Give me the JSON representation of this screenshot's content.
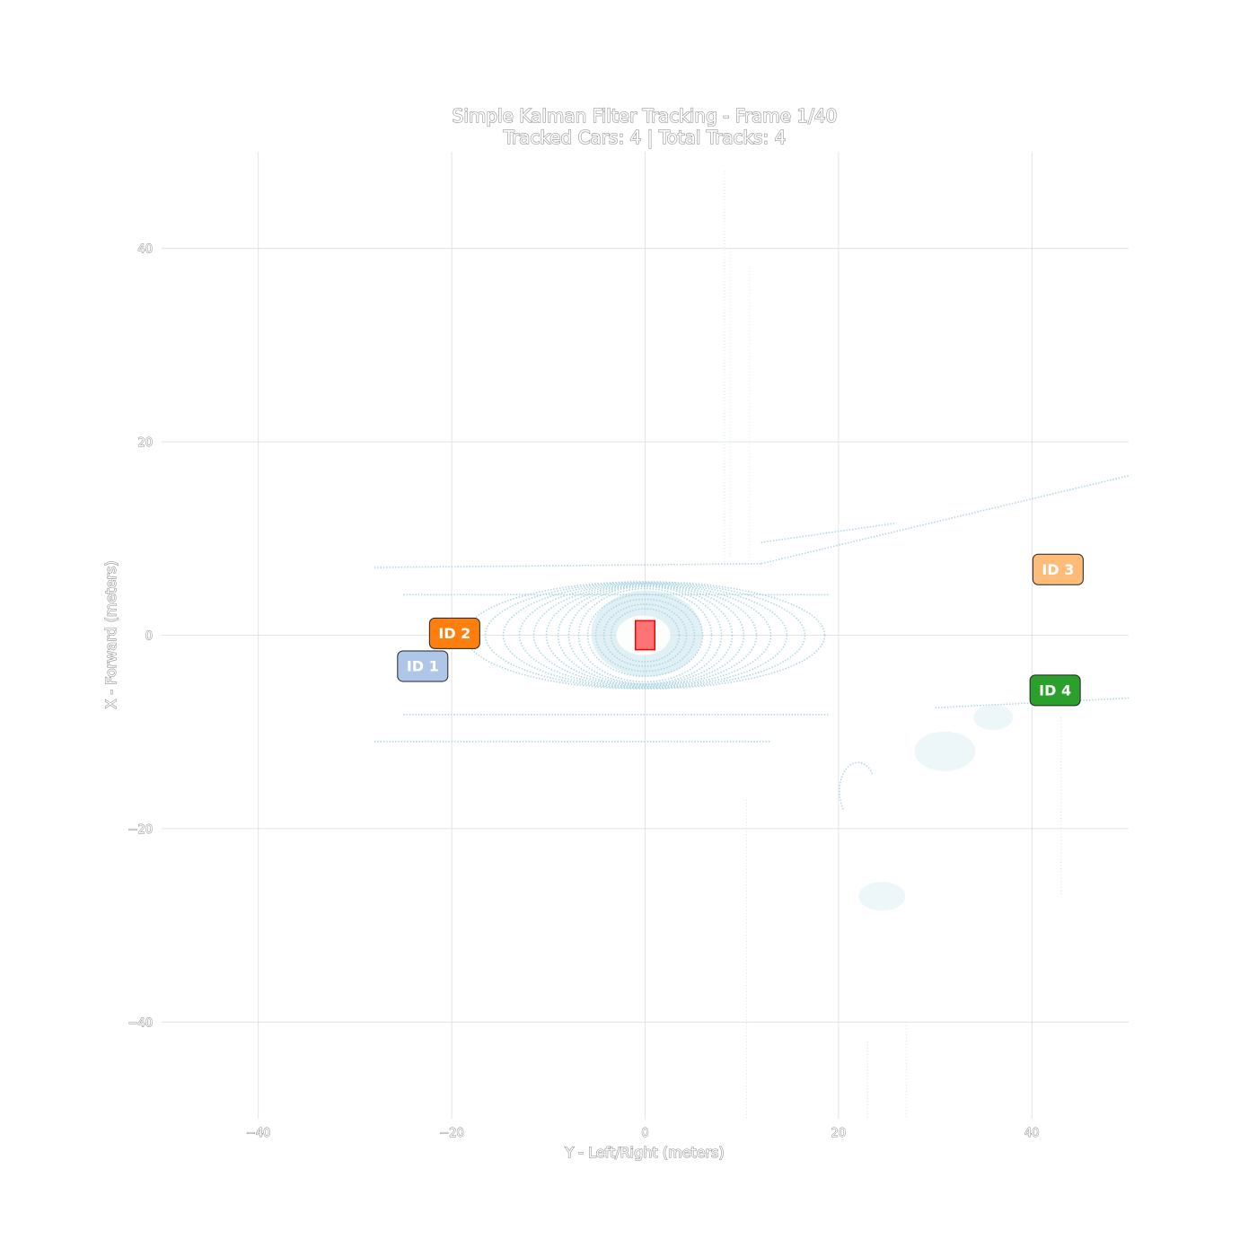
{
  "chart_data": {
    "type": "scatter",
    "title": "Simple Kalman Filter Tracking - Frame 1/40",
    "subtitle": "Tracked Cars: 4 | Total Tracks: 4",
    "xlabel": "Y - Left/Right (meters)",
    "ylabel": "X - Forward (meters)",
    "xlim": [
      -50,
      50
    ],
    "ylim": [
      -50,
      50
    ],
    "xticks": [
      -40,
      -20,
      0,
      20,
      40
    ],
    "xtick_labels": [
      "−40",
      "−20",
      "0",
      "20",
      "40"
    ],
    "yticks": [
      40,
      20,
      0,
      -20,
      -40
    ],
    "ytick_labels": [
      "40",
      "20",
      "0",
      "−20",
      "−40"
    ],
    "grid": true,
    "point_cloud_color": "#add8e6",
    "ego_vehicle": {
      "x": 0,
      "y": 0,
      "width": 2.0,
      "length": 3.0,
      "color": "#ff0000"
    },
    "tracks": [
      {
        "label": "ID 1",
        "x": -23,
        "y": -3.2,
        "color": "#aec7e8"
      },
      {
        "label": "ID 2",
        "x": -19.7,
        "y": 0.2,
        "color": "#ff7f0e"
      },
      {
        "label": "ID 3",
        "x": 42.7,
        "y": 6.8,
        "color": "#ffbb78"
      },
      {
        "label": "ID 4",
        "x": 42.4,
        "y": -5.7,
        "color": "#2ca02c"
      }
    ]
  }
}
